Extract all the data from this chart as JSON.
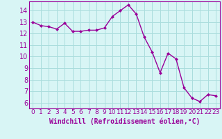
{
  "x": [
    0,
    1,
    2,
    3,
    4,
    5,
    6,
    7,
    8,
    9,
    10,
    11,
    12,
    13,
    14,
    15,
    16,
    17,
    18,
    19,
    20,
    21,
    22,
    23
  ],
  "y": [
    13.0,
    12.7,
    12.6,
    12.4,
    12.9,
    12.2,
    12.2,
    12.3,
    12.3,
    12.5,
    13.5,
    14.0,
    14.5,
    13.7,
    11.7,
    10.4,
    8.6,
    10.3,
    9.8,
    7.3,
    6.4,
    6.1,
    6.7,
    6.6
  ],
  "line_color": "#990099",
  "marker": "D",
  "marker_size": 2.0,
  "bg_color": "#d8f5f5",
  "grid_color": "#aadddd",
  "xlabel": "Windchill (Refroidissement éolien,°C)",
  "xlabel_color": "#990099",
  "xlabel_fontsize": 7.0,
  "xtick_labels": [
    "0",
    "1",
    "2",
    "3",
    "4",
    "5",
    "6",
    "7",
    "8",
    "9",
    "10",
    "11",
    "12",
    "13",
    "14",
    "15",
    "16",
    "17",
    "18",
    "19",
    "20",
    "21",
    "22",
    "23"
  ],
  "ylim": [
    5.5,
    14.8
  ],
  "yticks": [
    6,
    7,
    8,
    9,
    10,
    11,
    12,
    13,
    14
  ],
  "tick_color": "#990099",
  "tick_fontsize": 7.0,
  "spine_color": "#990099",
  "linewidth": 1.0
}
